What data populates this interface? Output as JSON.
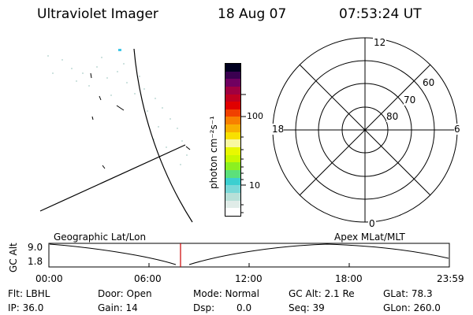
{
  "header": {
    "instrument": "Ultraviolet Imager",
    "date": "18 Aug 07",
    "time": "07:53:24 UT"
  },
  "colorbar": {
    "label": "photon cm⁻²s⁻¹",
    "ticks": [
      "100",
      "10"
    ],
    "colors": [
      "#ffffff",
      "#e0ece8",
      "#b8e0d8",
      "#7ad8d8",
      "#3ccfd0",
      "#5ce07a",
      "#8cf020",
      "#c8f800",
      "#e8f800",
      "#f8f8a0",
      "#f8e000",
      "#f8b000",
      "#f88000",
      "#f04000",
      "#e00000",
      "#c00020",
      "#a00040",
      "#700060",
      "#3a0050",
      "#000020"
    ]
  },
  "polar": {
    "mlt_labels": {
      "top": "12",
      "bottom": "0",
      "left": "18",
      "right": "6"
    },
    "lat_labels": [
      "60",
      "70",
      "80"
    ]
  },
  "timeline": {
    "left_title": "Geographic Lat/Lon",
    "right_title": "Apex MLat/MLT",
    "y_axis_label": "GC Alt",
    "y_ticks": [
      "9.0",
      "1.8"
    ],
    "x_ticks": [
      "00:00",
      "06:00",
      "12:00",
      "18:00",
      "23:59"
    ],
    "current_time": "07:53:24",
    "marker_color": "#cc0000"
  },
  "status": {
    "flt": "Flt: LBHL",
    "ip": "IP: 36.0",
    "door": "Door: Open",
    "gain": "Gain: 14",
    "mode": "Mode: Normal",
    "dsp_label": "Dsp:",
    "dsp_value": "0.0",
    "gc_alt": "GC Alt: 2.1 Re",
    "seq": "Seq: 39",
    "glat": "GLat:  78.3",
    "glon": "GLon: 260.0"
  }
}
